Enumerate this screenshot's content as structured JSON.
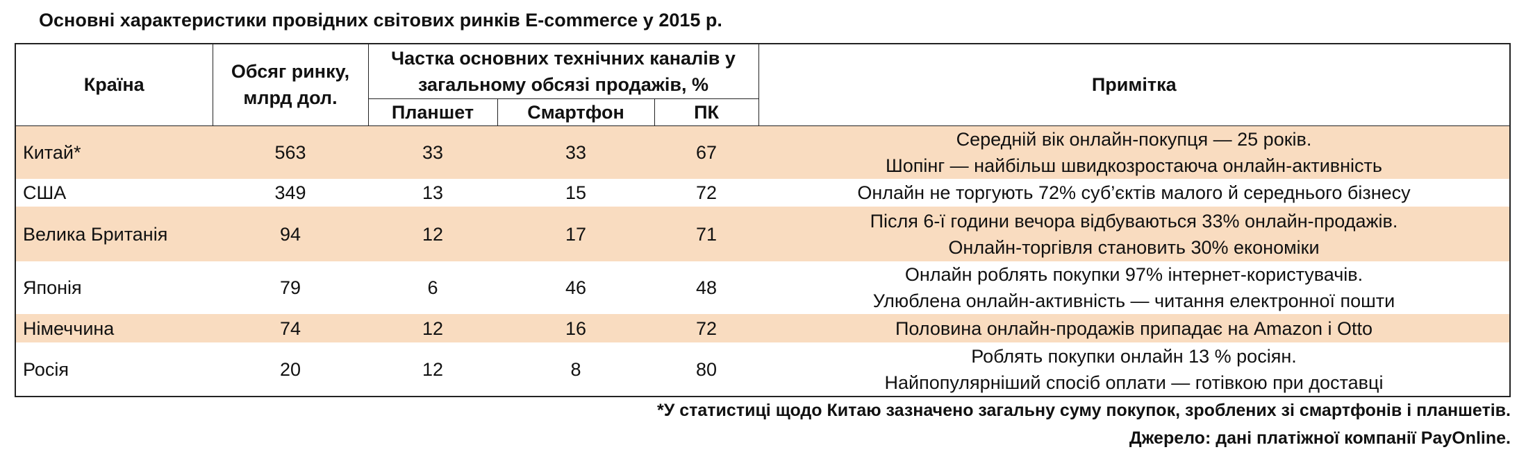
{
  "title": "Основні характеристики провідних світових ринків E-commerce у 2015 р.",
  "table": {
    "header": {
      "country": "Країна",
      "volume": "Обсяг ринку, млрд дол.",
      "group": "Частка основних технічних каналів у загальному обсязі продажів, %",
      "tablet": "Планшет",
      "smartphone": "Смартфон",
      "pc": "ПК",
      "note": "Примітка"
    },
    "rows": [
      {
        "country": "Китай*",
        "volume": 563,
        "tablet": 33,
        "smartphone": 33,
        "pc": 67,
        "note": [
          "Середній вік онлайн-покупця — 25 років.",
          "Шопінг — найбільш швидкозростаюча онлайн-активність"
        ]
      },
      {
        "country": "США",
        "volume": 349,
        "tablet": 13,
        "smartphone": 15,
        "pc": 72,
        "note": [
          "Онлайн не торгують 72% суб’єктів малого й середнього бізнесу"
        ]
      },
      {
        "country": "Велика Британія",
        "volume": 94,
        "tablet": 12,
        "smartphone": 17,
        "pc": 71,
        "note": [
          "Після 6-ї години вечора відбуваються 33% онлайн-продажів.",
          "Онлайн-торгівля становить 30% економіки"
        ]
      },
      {
        "country": "Японія",
        "volume": 79,
        "tablet": 6,
        "smartphone": 46,
        "pc": 48,
        "note": [
          "Онлайн роблять покупки 97% інтернет-користувачів.",
          "Улюблена онлайн-активність — читання електронної пошти"
        ]
      },
      {
        "country": "Німеччина",
        "volume": 74,
        "tablet": 12,
        "smartphone": 16,
        "pc": 72,
        "note": [
          "Половина онлайн-продажів припадає на Amazon і Otto"
        ]
      },
      {
        "country": "Росія",
        "volume": 20,
        "tablet": 12,
        "smartphone": 8,
        "pc": 80,
        "note": [
          "Роблять покупки онлайн 13 % росіян.",
          "Найпопулярніший спосіб оплати — готівкою при доставці"
        ]
      }
    ]
  },
  "footnote": "*У статистиці щодо Китаю зазначено загальну суму покупок, зроблених зі смартфонів і планшетів.",
  "source": "Джерело: дані платіжної компанії PayOnline."
}
